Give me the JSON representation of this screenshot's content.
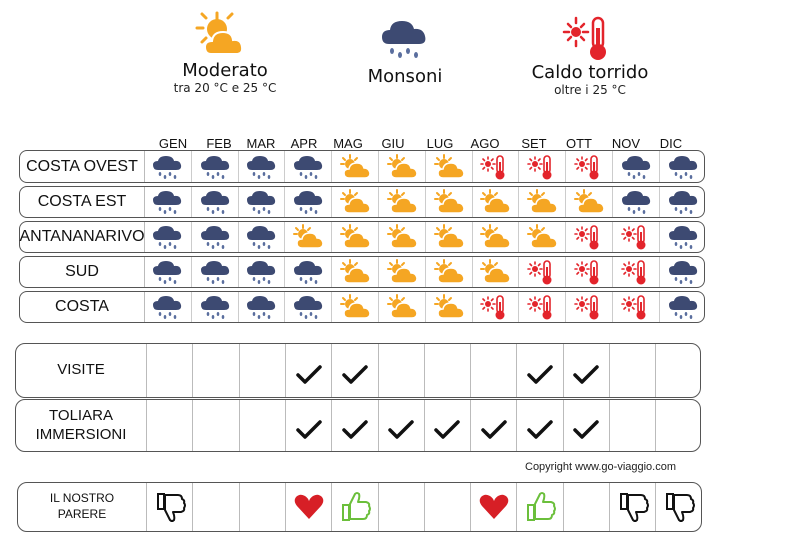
{
  "legend": [
    {
      "icon": "sun-cloud-icon",
      "title": "Moderato",
      "subtitle": "tra 20 °C e 25 °C"
    },
    {
      "icon": "rain-cloud-icon",
      "title": "Monsoni",
      "subtitle": ""
    },
    {
      "icon": "hot-thermometer-icon",
      "title": "Caldo torrido",
      "subtitle": "oltre i 25 °C"
    }
  ],
  "months": [
    "GEN",
    "FEB",
    "MAR",
    "APR",
    "MAG",
    "GIU",
    "LUG",
    "AGO",
    "SET",
    "OTT",
    "NOV",
    "DIC"
  ],
  "weather_rows": [
    {
      "label": "COSTA OVEST",
      "cells": [
        "rain",
        "rain",
        "rain",
        "rain",
        "sun",
        "sun",
        "sun",
        "hot",
        "hot",
        "hot",
        "rain",
        "rain"
      ]
    },
    {
      "label": "COSTA EST",
      "cells": [
        "rain",
        "rain",
        "rain",
        "rain",
        "sun",
        "sun",
        "sun",
        "sun",
        "sun",
        "sun",
        "rain",
        "rain"
      ]
    },
    {
      "label": "ANTANANARIVO",
      "cells": [
        "rain",
        "rain",
        "rain",
        "sun",
        "sun",
        "sun",
        "sun",
        "sun",
        "sun",
        "hot",
        "hot",
        "rain"
      ]
    },
    {
      "label": "SUD",
      "cells": [
        "rain",
        "rain",
        "rain",
        "rain",
        "sun",
        "sun",
        "sun",
        "sun",
        "hot",
        "hot",
        "hot",
        "rain"
      ]
    },
    {
      "label": "COSTA",
      "cells": [
        "rain",
        "rain",
        "rain",
        "rain",
        "sun",
        "sun",
        "sun",
        "hot",
        "hot",
        "hot",
        "hot",
        "rain"
      ]
    }
  ],
  "activity_rows": [
    {
      "label": "VISITE",
      "checks": [
        false,
        false,
        false,
        true,
        true,
        false,
        false,
        false,
        true,
        true,
        false,
        false
      ]
    },
    {
      "label": "TOLIARA\nIMMERSIONI",
      "checks": [
        false,
        false,
        false,
        true,
        true,
        true,
        true,
        true,
        true,
        true,
        false,
        false
      ]
    }
  ],
  "copyright": "Copyright www.go-viaggio.com",
  "parere": {
    "label": "IL NOSTRO\nPARERE",
    "cells": [
      "thumbs-down",
      "",
      "",
      "heart",
      "thumbs-up",
      "",
      "",
      "heart",
      "thumbs-up",
      "",
      "thumbs-down",
      "thumbs-down"
    ]
  },
  "colors": {
    "cloud_dark": "#3d4a72",
    "rain_drop": "#5a6e9e",
    "sun_orange": "#f5a623",
    "hot_red": "#e3242b",
    "thumb_green": "#6bbf3b",
    "heart_red": "#d71f26"
  }
}
